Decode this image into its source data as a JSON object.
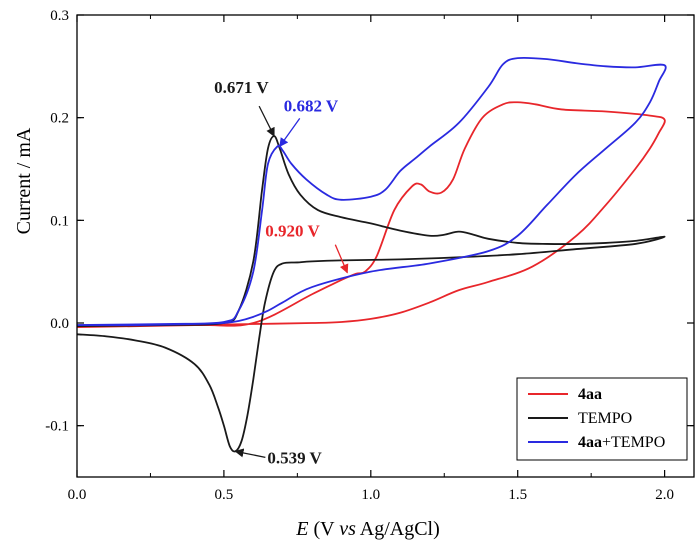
{
  "chart_data": {
    "type": "line",
    "xlabel_var": "E",
    "xlabel_rest": " (V ",
    "xlabel_vs": "vs",
    "xlabel_tail": " Ag/AgCl)",
    "ylabel": "Current / mA",
    "xlim": [
      0.0,
      2.1
    ],
    "ylim": [
      -0.15,
      0.3
    ],
    "xticks": [
      0.0,
      0.5,
      1.0,
      1.5,
      2.0
    ],
    "xtick_labels": [
      "0.0",
      "0.5",
      "1.0",
      "1.5",
      "2.0"
    ],
    "yticks": [
      -0.1,
      0.0,
      0.1,
      0.2,
      0.3
    ],
    "ytick_labels": [
      "-0.1",
      "0.0",
      "0.1",
      "0.2",
      "0.3"
    ],
    "legend_position": "bottom-right",
    "series": [
      {
        "name": "4aa",
        "legend_bold": "4aa",
        "legend_plain": "",
        "color": "#e8262b",
        "x": [
          0.0,
          0.4,
          0.6,
          0.8,
          0.9,
          0.95,
          0.98,
          1.02,
          1.08,
          1.14,
          1.17,
          1.2,
          1.24,
          1.28,
          1.32,
          1.38,
          1.45,
          1.5,
          1.56,
          1.65,
          1.8,
          1.95,
          2.0,
          1.98,
          1.95,
          1.9,
          1.8,
          1.7,
          1.55,
          1.4,
          1.3,
          1.2,
          1.1,
          1.0,
          0.9,
          0.8,
          0.6,
          0.4,
          0.2,
          0.0
        ],
        "y": [
          -0.004,
          -0.002,
          0.0,
          0.028,
          0.042,
          0.048,
          0.05,
          0.065,
          0.11,
          0.133,
          0.135,
          0.128,
          0.127,
          0.14,
          0.17,
          0.2,
          0.213,
          0.215,
          0.213,
          0.208,
          0.206,
          0.202,
          0.198,
          0.185,
          0.17,
          0.15,
          0.115,
          0.085,
          0.055,
          0.04,
          0.032,
          0.02,
          0.01,
          0.004,
          0.001,
          0.0,
          -0.001,
          -0.002,
          -0.003,
          -0.004
        ]
      },
      {
        "name": "TEMPO",
        "legend_bold": "",
        "legend_plain": "TEMPO",
        "color": "#1a1a1a",
        "x": [
          0.0,
          0.3,
          0.5,
          0.55,
          0.6,
          0.63,
          0.65,
          0.671,
          0.69,
          0.72,
          0.76,
          0.82,
          0.9,
          1.0,
          1.1,
          1.2,
          1.25,
          1.3,
          1.35,
          1.4,
          1.5,
          1.6,
          1.7,
          1.8,
          1.9,
          2.0,
          1.9,
          1.7,
          1.5,
          1.3,
          1.1,
          0.9,
          0.8,
          0.75,
          0.7,
          0.67,
          0.64,
          0.62,
          0.6,
          0.58,
          0.56,
          0.539,
          0.52,
          0.5,
          0.48,
          0.45,
          0.4,
          0.3,
          0.2,
          0.1,
          0.0
        ],
        "y": [
          -0.003,
          -0.002,
          0.0,
          0.012,
          0.06,
          0.13,
          0.17,
          0.182,
          0.17,
          0.145,
          0.125,
          0.11,
          0.103,
          0.097,
          0.09,
          0.085,
          0.086,
          0.089,
          0.086,
          0.082,
          0.078,
          0.077,
          0.077,
          0.078,
          0.08,
          0.084,
          0.077,
          0.072,
          0.067,
          0.064,
          0.062,
          0.061,
          0.06,
          0.059,
          0.058,
          0.05,
          0.02,
          -0.015,
          -0.055,
          -0.09,
          -0.115,
          -0.125,
          -0.12,
          -0.1,
          -0.082,
          -0.06,
          -0.04,
          -0.024,
          -0.017,
          -0.013,
          -0.011
        ]
      },
      {
        "name": "4aa+TEMPO",
        "legend_bold": "4aa",
        "legend_plain": "+TEMPO",
        "color": "#2a2ae0",
        "x": [
          0.0,
          0.3,
          0.5,
          0.55,
          0.6,
          0.63,
          0.65,
          0.682,
          0.7,
          0.73,
          0.78,
          0.85,
          0.9,
          1.0,
          1.05,
          1.1,
          1.15,
          1.2,
          1.3,
          1.4,
          1.45,
          1.5,
          1.6,
          1.7,
          1.8,
          1.9,
          2.0,
          1.98,
          1.95,
          1.9,
          1.8,
          1.7,
          1.6,
          1.5,
          1.4,
          1.2,
          1.0,
          0.8,
          0.7,
          0.65,
          0.6,
          0.55,
          0.5,
          0.4,
          0.2,
          0.0
        ],
        "y": [
          -0.002,
          -0.001,
          0.001,
          0.012,
          0.05,
          0.11,
          0.155,
          0.172,
          0.168,
          0.155,
          0.14,
          0.125,
          0.12,
          0.123,
          0.13,
          0.148,
          0.16,
          0.172,
          0.195,
          0.23,
          0.252,
          0.258,
          0.257,
          0.253,
          0.25,
          0.249,
          0.251,
          0.235,
          0.215,
          0.195,
          0.17,
          0.145,
          0.115,
          0.085,
          0.07,
          0.058,
          0.05,
          0.035,
          0.02,
          0.012,
          0.006,
          0.002,
          0.0,
          -0.001,
          -0.002,
          -0.002
        ]
      }
    ],
    "annotations": [
      {
        "text": "0.671 V",
        "color": "#1a1a1a",
        "target": [
          0.671,
          0.182
        ],
        "anchor": "text-above-left"
      },
      {
        "text": "0.682 V",
        "color": "#2a2ae0",
        "target": [
          0.69,
          0.172
        ],
        "anchor": "text-above-right"
      },
      {
        "text": "0.920 V",
        "color": "#e8262b",
        "target": [
          0.92,
          0.049
        ],
        "anchor": "text-above"
      },
      {
        "text": "0.539 V",
        "color": "#1a1a1a",
        "target": [
          0.539,
          -0.125
        ],
        "anchor": "text-right"
      }
    ]
  }
}
